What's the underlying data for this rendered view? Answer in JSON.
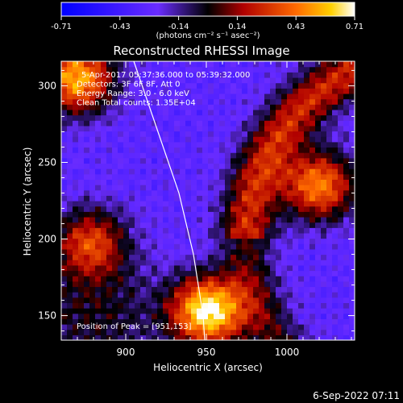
{
  "chart_data": {
    "type": "heatmap",
    "title": "Reconstructed RHESSI Image",
    "xlabel": "Heliocentric X (arcsec)",
    "ylabel": "Heliocentric Y (arcsec)",
    "xlim": [
      860,
      1042
    ],
    "ylim": [
      134,
      316
    ],
    "x_ticks": [
      900,
      950,
      1000
    ],
    "y_ticks": [
      150,
      200,
      250,
      300
    ],
    "colorbar": {
      "min": -0.71,
      "max": 0.71,
      "ticks": [
        "-0.71",
        "-0.43",
        "-0.14",
        "0.14",
        "0.43",
        "0.71"
      ],
      "units_label": "(photons cm⁻² s⁻¹ asec⁻²)"
    },
    "annotations": [
      "5-Apr-2017 05:37:36.000 to 05:39:32.000",
      "Detectors: 3F 6F 8F, Att 0",
      "Energy Range: 3.0 - 6.0 keV",
      "Clean     Total counts: 1.35E+04"
    ],
    "peak_label": "Position of Peak = [951,153]",
    "peak_position": [
      951,
      153
    ],
    "sources": [
      {
        "x": 951,
        "y": 153,
        "peak": 0.71
      },
      {
        "x": 870,
        "y": 305,
        "peak": 0.55
      },
      {
        "x": 1020,
        "y": 235,
        "peak": 0.45
      },
      {
        "x": 878,
        "y": 198,
        "peak": 0.25
      }
    ],
    "limb_curve": [
      [
        905,
        316
      ],
      [
        920,
        270
      ],
      [
        933,
        230
      ],
      [
        942,
        190
      ],
      [
        948,
        150
      ],
      [
        949,
        134
      ]
    ]
  },
  "footer": {
    "date": "6-Sep-2022 07:11"
  }
}
